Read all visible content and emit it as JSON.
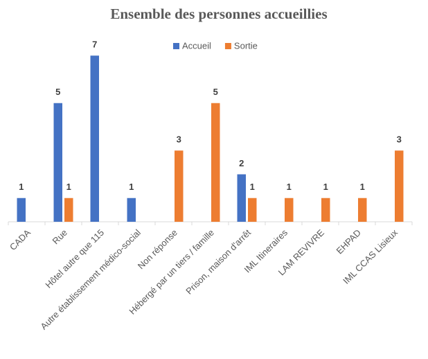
{
  "chart_data": {
    "type": "bar",
    "title": "Ensemble des personnes accueillies",
    "categories": [
      "CADA",
      "Rue",
      "Hôtel autre que 115",
      "Autre établissement médico-social",
      "Non réponse",
      "Hébergé par un tiers / famille",
      "Prison, maison d'arrêt",
      "IML Itineraires",
      "LAM REVIVRE",
      "EHPAD",
      "IML CCAS Lisieux"
    ],
    "series": [
      {
        "name": "Accueil",
        "color": "#4472c4",
        "values": [
          1,
          5,
          7,
          1,
          null,
          null,
          2,
          null,
          null,
          null,
          null
        ]
      },
      {
        "name": "Sortie",
        "color": "#ed7d31",
        "values": [
          null,
          1,
          null,
          null,
          3,
          5,
          1,
          1,
          1,
          1,
          3
        ]
      }
    ],
    "ylim": [
      0,
      8
    ],
    "legend": "top"
  }
}
